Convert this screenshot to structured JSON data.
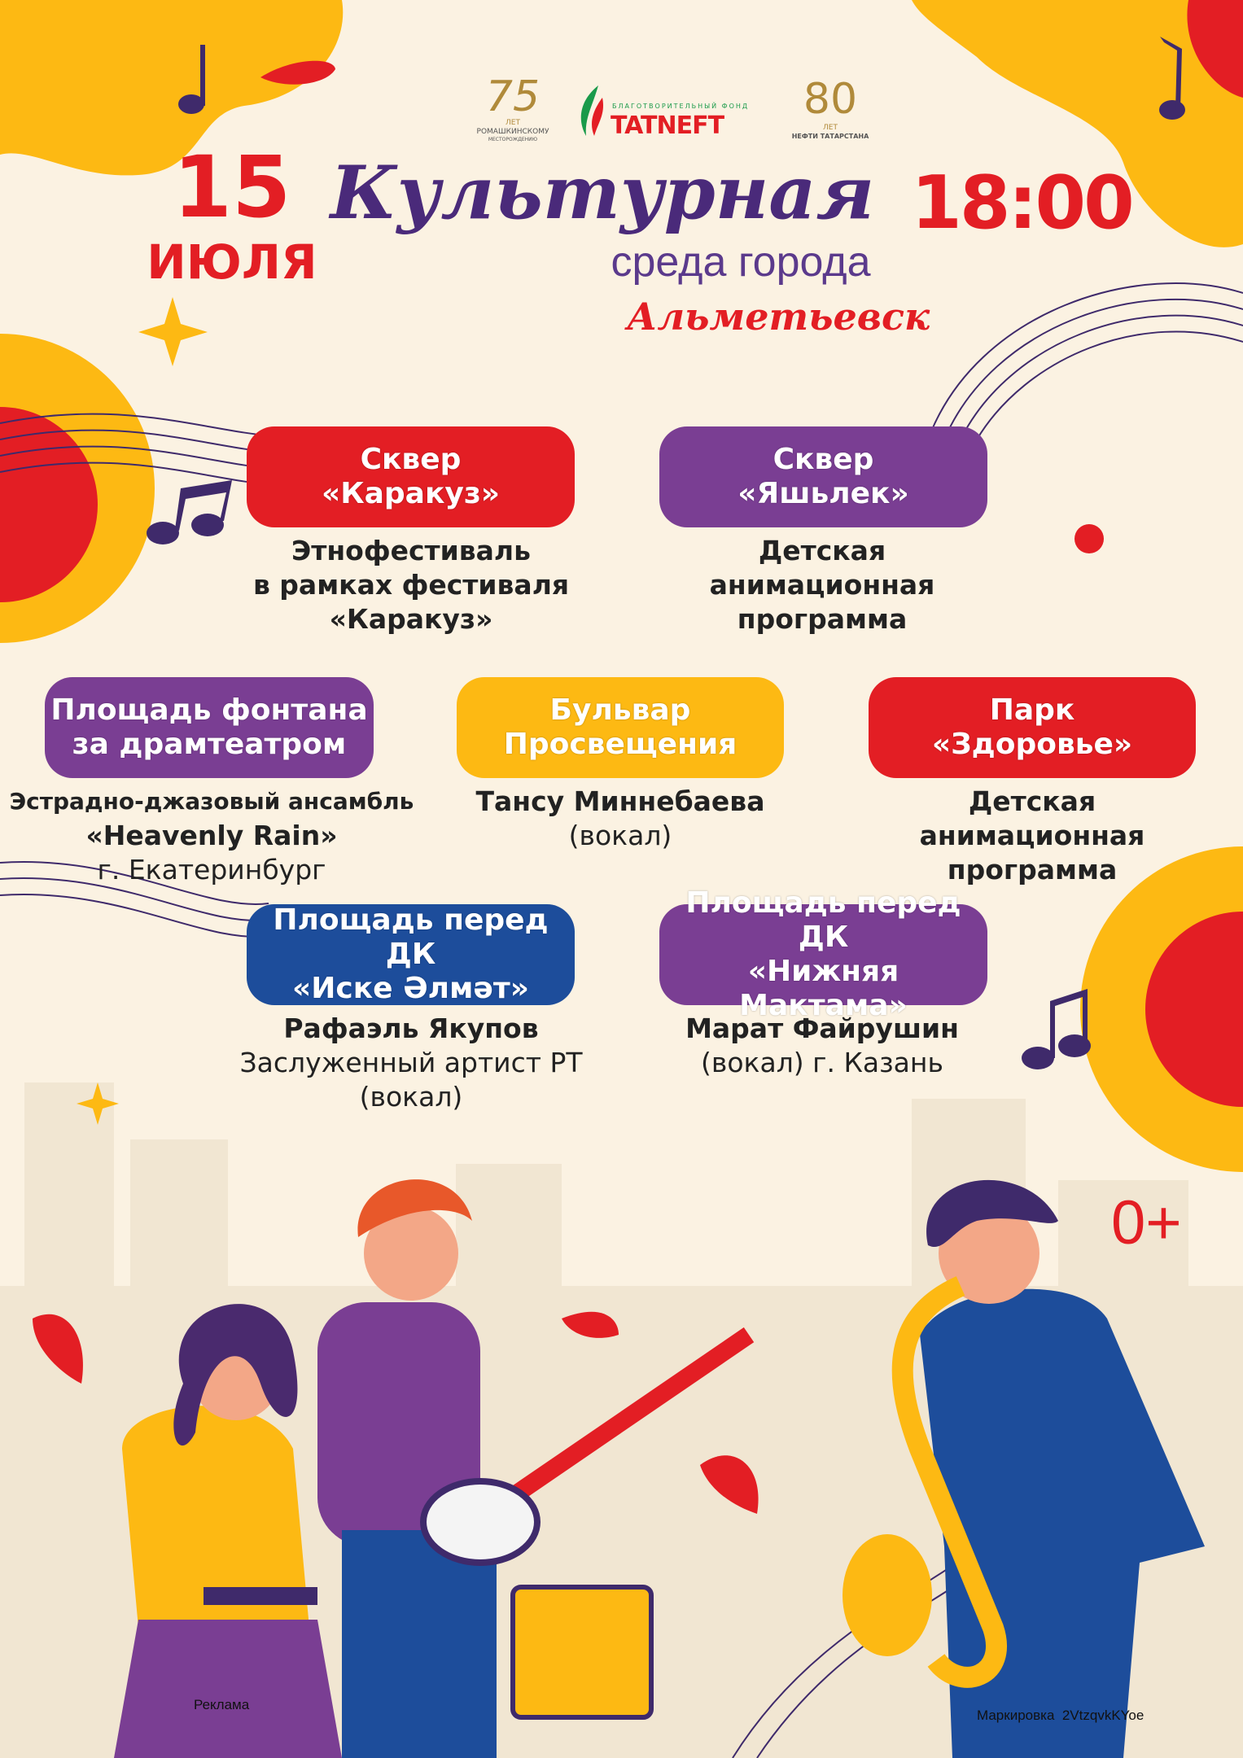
{
  "colors": {
    "red": "#e31e24",
    "purple": "#7a3e93",
    "yellow": "#fdb913",
    "blue": "#1d4d9b",
    "background": "#fbf2e2",
    "dark_purple": "#3f2a6b"
  },
  "logos": {
    "left": {
      "number": "75",
      "line1": "ЛЕТ",
      "line2": "РОМАШКИНСКОМУ",
      "line3": "МЕСТОРОЖДЕНИЮ"
    },
    "center": {
      "subtitle": "БЛАГОТВОРИТЕЛЬНЫЙ ФОНД",
      "brand": "TATNEFT"
    },
    "right": {
      "number": "80",
      "line1": "ЛЕТ",
      "line2": "НЕФТИ ТАТАРСТАНА"
    }
  },
  "header": {
    "day": "15",
    "month": "ИЮЛЯ",
    "time": "18:00",
    "title": "Культурная",
    "subtitle": "среда города",
    "city": "Альметьевск"
  },
  "venues": [
    {
      "name": [
        "Сквер",
        "«Каракуз»"
      ],
      "color": "red",
      "desc": [
        {
          "t": "Этнофестиваль",
          "b": true
        },
        {
          "t": "в рамках фестиваля",
          "b": true
        },
        {
          "t": "«Каракуз»",
          "b": true
        }
      ]
    },
    {
      "name": [
        "Сквер",
        "«Яшьлек»"
      ],
      "color": "purple",
      "desc": [
        {
          "t": "Детская",
          "b": true
        },
        {
          "t": "анимационная",
          "b": true
        },
        {
          "t": "программа",
          "b": true
        }
      ]
    },
    {
      "name": [
        "Площадь фонтана",
        "за драмтеатром"
      ],
      "color": "purple",
      "desc": [
        {
          "t": "Эстрадно-джазовый ансамбль",
          "b": true
        },
        {
          "t": "«Heavenly Rain»",
          "b": true
        },
        {
          "t": "г. Екатеринбург",
          "b": false
        }
      ]
    },
    {
      "name": [
        "Бульвар",
        "Просвещения"
      ],
      "color": "yellow",
      "desc": [
        {
          "t": "Тансу Миннебаева",
          "b": true
        },
        {
          "t": "(вокал)",
          "b": false
        }
      ]
    },
    {
      "name": [
        "Парк",
        "«Здоровье»"
      ],
      "color": "red",
      "desc": [
        {
          "t": "Детская",
          "b": true
        },
        {
          "t": "анимационная",
          "b": true
        },
        {
          "t": "программа",
          "b": true
        }
      ]
    },
    {
      "name": [
        "Площадь перед ДК",
        "«Иске Әлмәт»"
      ],
      "color": "blue",
      "desc": [
        {
          "t": "Рафаэль Якупов",
          "b": true
        },
        {
          "t": "Заслуженный артист РТ",
          "b": false
        },
        {
          "t": "(вокал)",
          "b": false
        }
      ]
    },
    {
      "name": [
        "Площадь перед ДК",
        "«Нижняя Мактама»"
      ],
      "color": "purple",
      "desc": [
        {
          "t": "Марат Файрушин",
          "b": true
        },
        {
          "t": "(вокал) г. Казань",
          "b": false
        }
      ]
    }
  ],
  "age_rating": "0+",
  "footer": {
    "ad": "Реклама",
    "marking": "Маркировка  2VtzqvkKYoe"
  },
  "illustration": {
    "subjects": [
      "singer-woman",
      "guitarist",
      "saxophonist",
      "amplifier",
      "music-notes"
    ]
  }
}
